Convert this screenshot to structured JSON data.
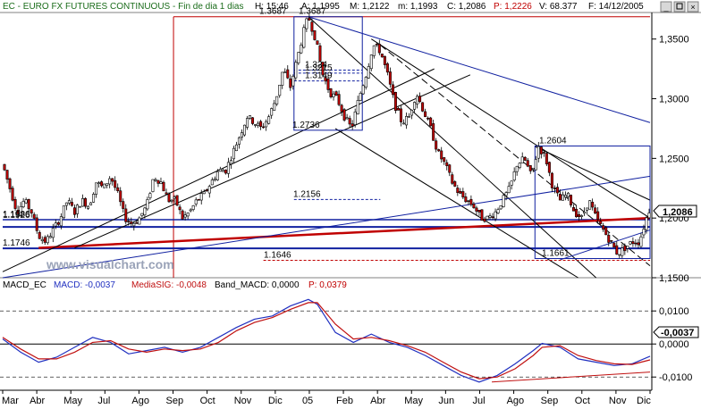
{
  "header": {
    "title": "EC - EURO FX FUTURES CONTINUOUS - Fin de dia 1 dias",
    "hour": "H: 15:46",
    "avg": "A: 1,1995",
    "max": "M: 1,2122",
    "min": "m: 1,1993",
    "close": "C: 1,2086",
    "p": "P: 1,2226",
    "vol": "V: 68.377",
    "date": "F: 14/12/2005"
  },
  "macd_header": {
    "name": "MACD_EC",
    "macd": "MACD: -0,0037",
    "signal": "MediaSIG: -0,0048",
    "band": "Band_MACD: 0,0000",
    "p": "P: 0,0379"
  },
  "watermark": "www.visualchart.com",
  "current_price_label": "1,2086",
  "current_macd_label": "-0,0037",
  "colors": {
    "up_candle": "#ffffff",
    "down_candle": "#c00000",
    "macd_line": "#2030c0",
    "signal_line": "#c01010",
    "trend_black": "#000000",
    "trend_blue": "#1020a0",
    "level_red": "#c00000"
  },
  "chart_data": [
    {
      "type": "candlestick",
      "title": "EC - EURO FX FUTURES CONTINUOUS",
      "y_ticks": [
        "1,3500",
        "1,3000",
        "1,2500",
        "1,2000",
        "1,1500"
      ],
      "ylim": [
        1.15,
        1.37
      ],
      "x_labels": [
        "Mar",
        "Abr",
        "May",
        "Jul",
        "Ago",
        "Sep",
        "Oct",
        "Nov",
        "Dic",
        "05",
        "Feb",
        "Abr",
        "May",
        "Jun",
        "Jul",
        "Ago",
        "Sep",
        "Oct",
        "Nov",
        "Dic"
      ],
      "close_path": [
        [
          0,
          1.245
        ],
        [
          4,
          1.225
        ],
        [
          8,
          1.205
        ],
        [
          12,
          1.215
        ],
        [
          16,
          1.205
        ],
        [
          20,
          1.185
        ],
        [
          24,
          1.18
        ],
        [
          28,
          1.19
        ],
        [
          32,
          1.2
        ],
        [
          36,
          1.215
        ],
        [
          40,
          1.205
        ],
        [
          44,
          1.215
        ],
        [
          48,
          1.21
        ],
        [
          52,
          1.23
        ],
        [
          56,
          1.225
        ],
        [
          60,
          1.235
        ],
        [
          64,
          1.22
        ],
        [
          68,
          1.2
        ],
        [
          72,
          1.195
        ],
        [
          76,
          1.2
        ],
        [
          80,
          1.21
        ],
        [
          84,
          1.235
        ],
        [
          88,
          1.23
        ],
        [
          92,
          1.215
        ],
        [
          96,
          1.215
        ],
        [
          100,
          1.2
        ],
        [
          104,
          1.205
        ],
        [
          108,
          1.215
        ],
        [
          112,
          1.22
        ],
        [
          116,
          1.23
        ],
        [
          120,
          1.24
        ],
        [
          124,
          1.24
        ],
        [
          128,
          1.255
        ],
        [
          132,
          1.27
        ],
        [
          136,
          1.285
        ],
        [
          140,
          1.28
        ],
        [
          144,
          1.275
        ],
        [
          148,
          1.285
        ],
        [
          152,
          1.3
        ],
        [
          156,
          1.325
        ],
        [
          160,
          1.31
        ],
        [
          164,
          1.335
        ],
        [
          168,
          1.36
        ],
        [
          170,
          1.3687
        ],
        [
          174,
          1.35
        ],
        [
          178,
          1.32
        ],
        [
          182,
          1.305
        ],
        [
          186,
          1.3
        ],
        [
          190,
          1.285
        ],
        [
          194,
          1.275
        ],
        [
          198,
          1.3
        ],
        [
          202,
          1.32
        ],
        [
          206,
          1.345
        ],
        [
          210,
          1.34
        ],
        [
          214,
          1.32
        ],
        [
          218,
          1.295
        ],
        [
          222,
          1.28
        ],
        [
          226,
          1.285
        ],
        [
          230,
          1.305
        ],
        [
          234,
          1.29
        ],
        [
          238,
          1.275
        ],
        [
          242,
          1.255
        ],
        [
          246,
          1.245
        ],
        [
          250,
          1.23
        ],
        [
          254,
          1.22
        ],
        [
          258,
          1.215
        ],
        [
          262,
          1.21
        ],
        [
          266,
          1.2
        ],
        [
          270,
          1.2
        ],
        [
          274,
          1.205
        ],
        [
          278,
          1.215
        ],
        [
          282,
          1.225
        ],
        [
          286,
          1.245
        ],
        [
          290,
          1.25
        ],
        [
          294,
          1.235
        ],
        [
          298,
          1.26
        ],
        [
          302,
          1.25
        ],
        [
          306,
          1.225
        ],
        [
          310,
          1.215
        ],
        [
          314,
          1.22
        ],
        [
          318,
          1.205
        ],
        [
          322,
          1.2
        ],
        [
          326,
          1.215
        ],
        [
          330,
          1.2
        ],
        [
          334,
          1.19
        ],
        [
          338,
          1.18
        ],
        [
          342,
          1.17
        ],
        [
          346,
          1.175
        ],
        [
          350,
          1.18
        ],
        [
          354,
          1.18
        ],
        [
          358,
          1.2
        ],
        [
          360,
          1.2086
        ]
      ],
      "levels": [
        {
          "label": "1.3687",
          "value": 1.3687
        },
        {
          "label": "1.3687",
          "value": 1.3687
        },
        {
          "label": "1.324",
          "value": 1.324
        },
        {
          "label": "1.3215",
          "value": 1.3215
        },
        {
          "label": "1.3149",
          "value": 1.3149
        },
        {
          "label": "1.2736",
          "value": 1.2736
        },
        {
          "label": "1.2604",
          "value": 1.2604
        },
        {
          "label": "1.2156",
          "value": 1.2156
        },
        {
          "label": "1.1986",
          "value": 1.1986
        },
        {
          "label": "1.1926",
          "value": 1.1926
        },
        {
          "label": "1.1746",
          "value": 1.1746
        },
        {
          "label": "1.1661",
          "value": 1.1661
        },
        {
          "label": "1.1646",
          "value": 1.1646
        }
      ]
    },
    {
      "type": "line",
      "title": "MACD_EC",
      "y_ticks": [
        "0,0100",
        "0,0000",
        "-0,0100"
      ],
      "ylim": [
        -0.014,
        0.016
      ],
      "series": [
        {
          "name": "MACD",
          "points": [
            [
              0,
              0.0015
            ],
            [
              10,
              -0.0025
            ],
            [
              20,
              -0.0055
            ],
            [
              30,
              -0.004
            ],
            [
              40,
              -0.001
            ],
            [
              50,
              0.002
            ],
            [
              60,
              0.0005
            ],
            [
              70,
              -0.003
            ],
            [
              80,
              -0.002
            ],
            [
              90,
              -0.001
            ],
            [
              100,
              -0.0025
            ],
            [
              110,
              -0.001
            ],
            [
              120,
              0.002
            ],
            [
              130,
              0.005
            ],
            [
              140,
              0.0075
            ],
            [
              150,
              0.0085
            ],
            [
              160,
              0.0115
            ],
            [
              170,
              0.0135
            ],
            [
              175,
              0.012
            ],
            [
              185,
              0.0035
            ],
            [
              195,
              0.0005
            ],
            [
              205,
              0.003
            ],
            [
              215,
              0.0005
            ],
            [
              225,
              -0.001
            ],
            [
              235,
              -0.0035
            ],
            [
              245,
              -0.0065
            ],
            [
              255,
              -0.0095
            ],
            [
              265,
              -0.0115
            ],
            [
              275,
              -0.0095
            ],
            [
              285,
              -0.006
            ],
            [
              295,
              -0.002
            ],
            [
              300,
              0.0002
            ],
            [
              310,
              -0.001
            ],
            [
              320,
              -0.0045
            ],
            [
              330,
              -0.0055
            ],
            [
              340,
              -0.0065
            ],
            [
              350,
              -0.006
            ],
            [
              360,
              -0.0037
            ]
          ]
        },
        {
          "name": "MediaSIG",
          "points": [
            [
              0,
              0.002
            ],
            [
              10,
              -0.0015
            ],
            [
              20,
              -0.0045
            ],
            [
              30,
              -0.0045
            ],
            [
              40,
              -0.0025
            ],
            [
              50,
              0.0005
            ],
            [
              60,
              0.001
            ],
            [
              70,
              -0.0015
            ],
            [
              80,
              -0.0025
            ],
            [
              90,
              -0.0015
            ],
            [
              100,
              -0.002
            ],
            [
              110,
              -0.0015
            ],
            [
              120,
              0.0005
            ],
            [
              130,
              0.004
            ],
            [
              140,
              0.0065
            ],
            [
              150,
              0.008
            ],
            [
              160,
              0.0105
            ],
            [
              170,
              0.0125
            ],
            [
              175,
              0.0125
            ],
            [
              185,
              0.006
            ],
            [
              195,
              0.0015
            ],
            [
              205,
              0.002
            ],
            [
              215,
              0.001
            ],
            [
              225,
              -0.0005
            ],
            [
              235,
              -0.0025
            ],
            [
              245,
              -0.0055
            ],
            [
              255,
              -0.0085
            ],
            [
              265,
              -0.0105
            ],
            [
              275,
              -0.01
            ],
            [
              285,
              -0.0075
            ],
            [
              295,
              -0.0035
            ],
            [
              300,
              -0.001
            ],
            [
              310,
              -0.0005
            ],
            [
              320,
              -0.0035
            ],
            [
              330,
              -0.005
            ],
            [
              340,
              -0.006
            ],
            [
              350,
              -0.0062
            ],
            [
              360,
              -0.0048
            ]
          ]
        }
      ]
    }
  ]
}
